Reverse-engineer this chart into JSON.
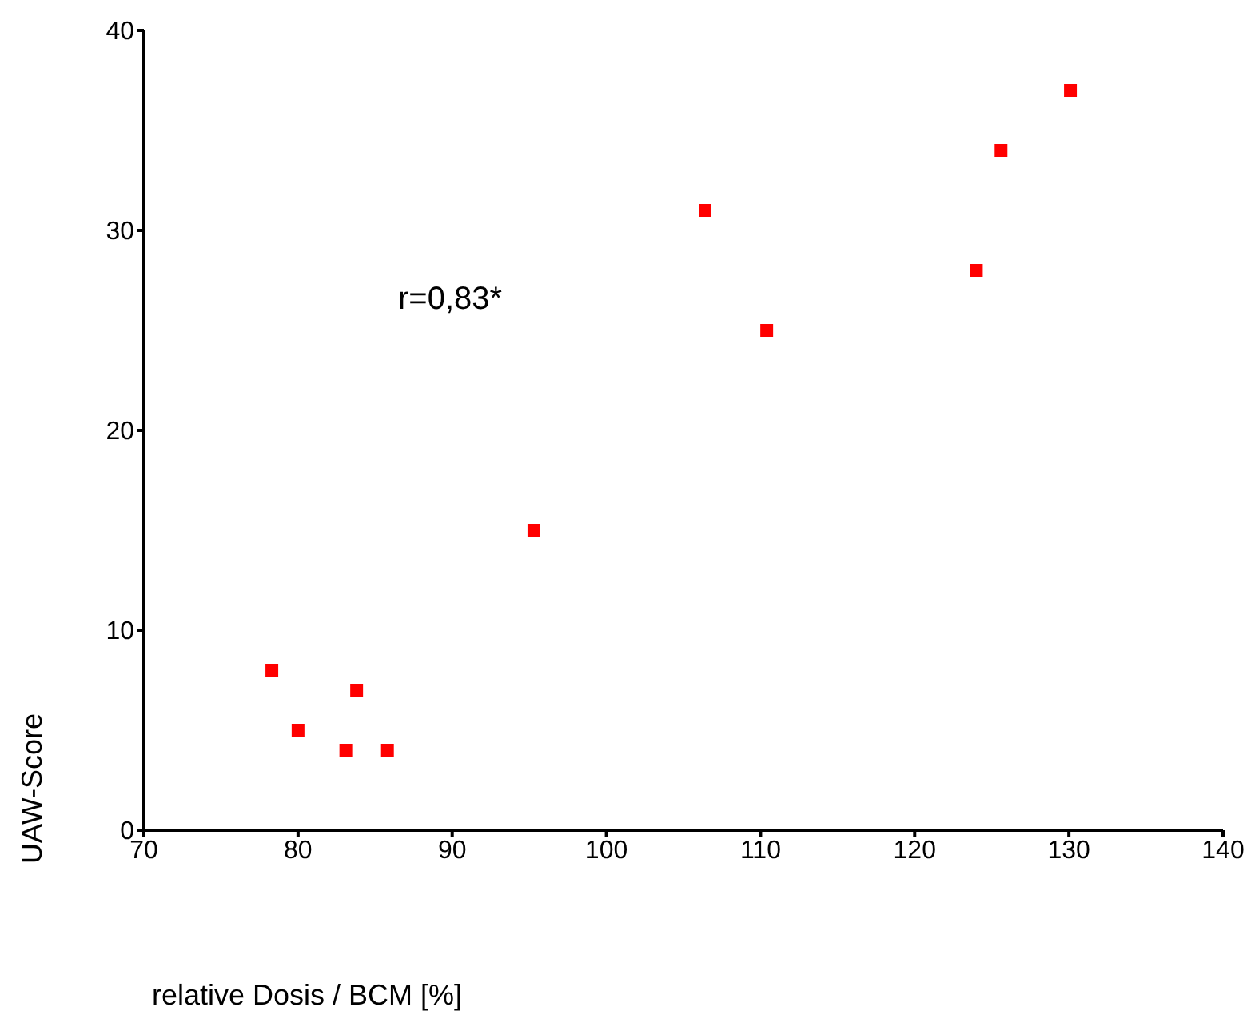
{
  "chart_data": {
    "type": "scatter",
    "xlabel": "relative Dosis / BCM [%]",
    "ylabel": "UAW-Score",
    "annotations": [
      "r=0,83*"
    ],
    "x": [
      78.3,
      80,
      83.8,
      83.1,
      85.8,
      95.3,
      106.4,
      110.4,
      124,
      125.6,
      130.1
    ],
    "series": [
      {
        "color": "#ff0000",
        "values": [
          8,
          5,
          7,
          4,
          4,
          15,
          31,
          25,
          28,
          34,
          37
        ]
      }
    ],
    "xlim": [
      70,
      140
    ],
    "xticks": [
      70,
      80,
      90,
      100,
      110,
      120,
      130,
      140
    ],
    "ylim": [
      0,
      40
    ],
    "yticks": [
      0,
      10,
      20,
      30,
      40
    ],
    "grid": false,
    "legend": false,
    "marker": "square"
  }
}
